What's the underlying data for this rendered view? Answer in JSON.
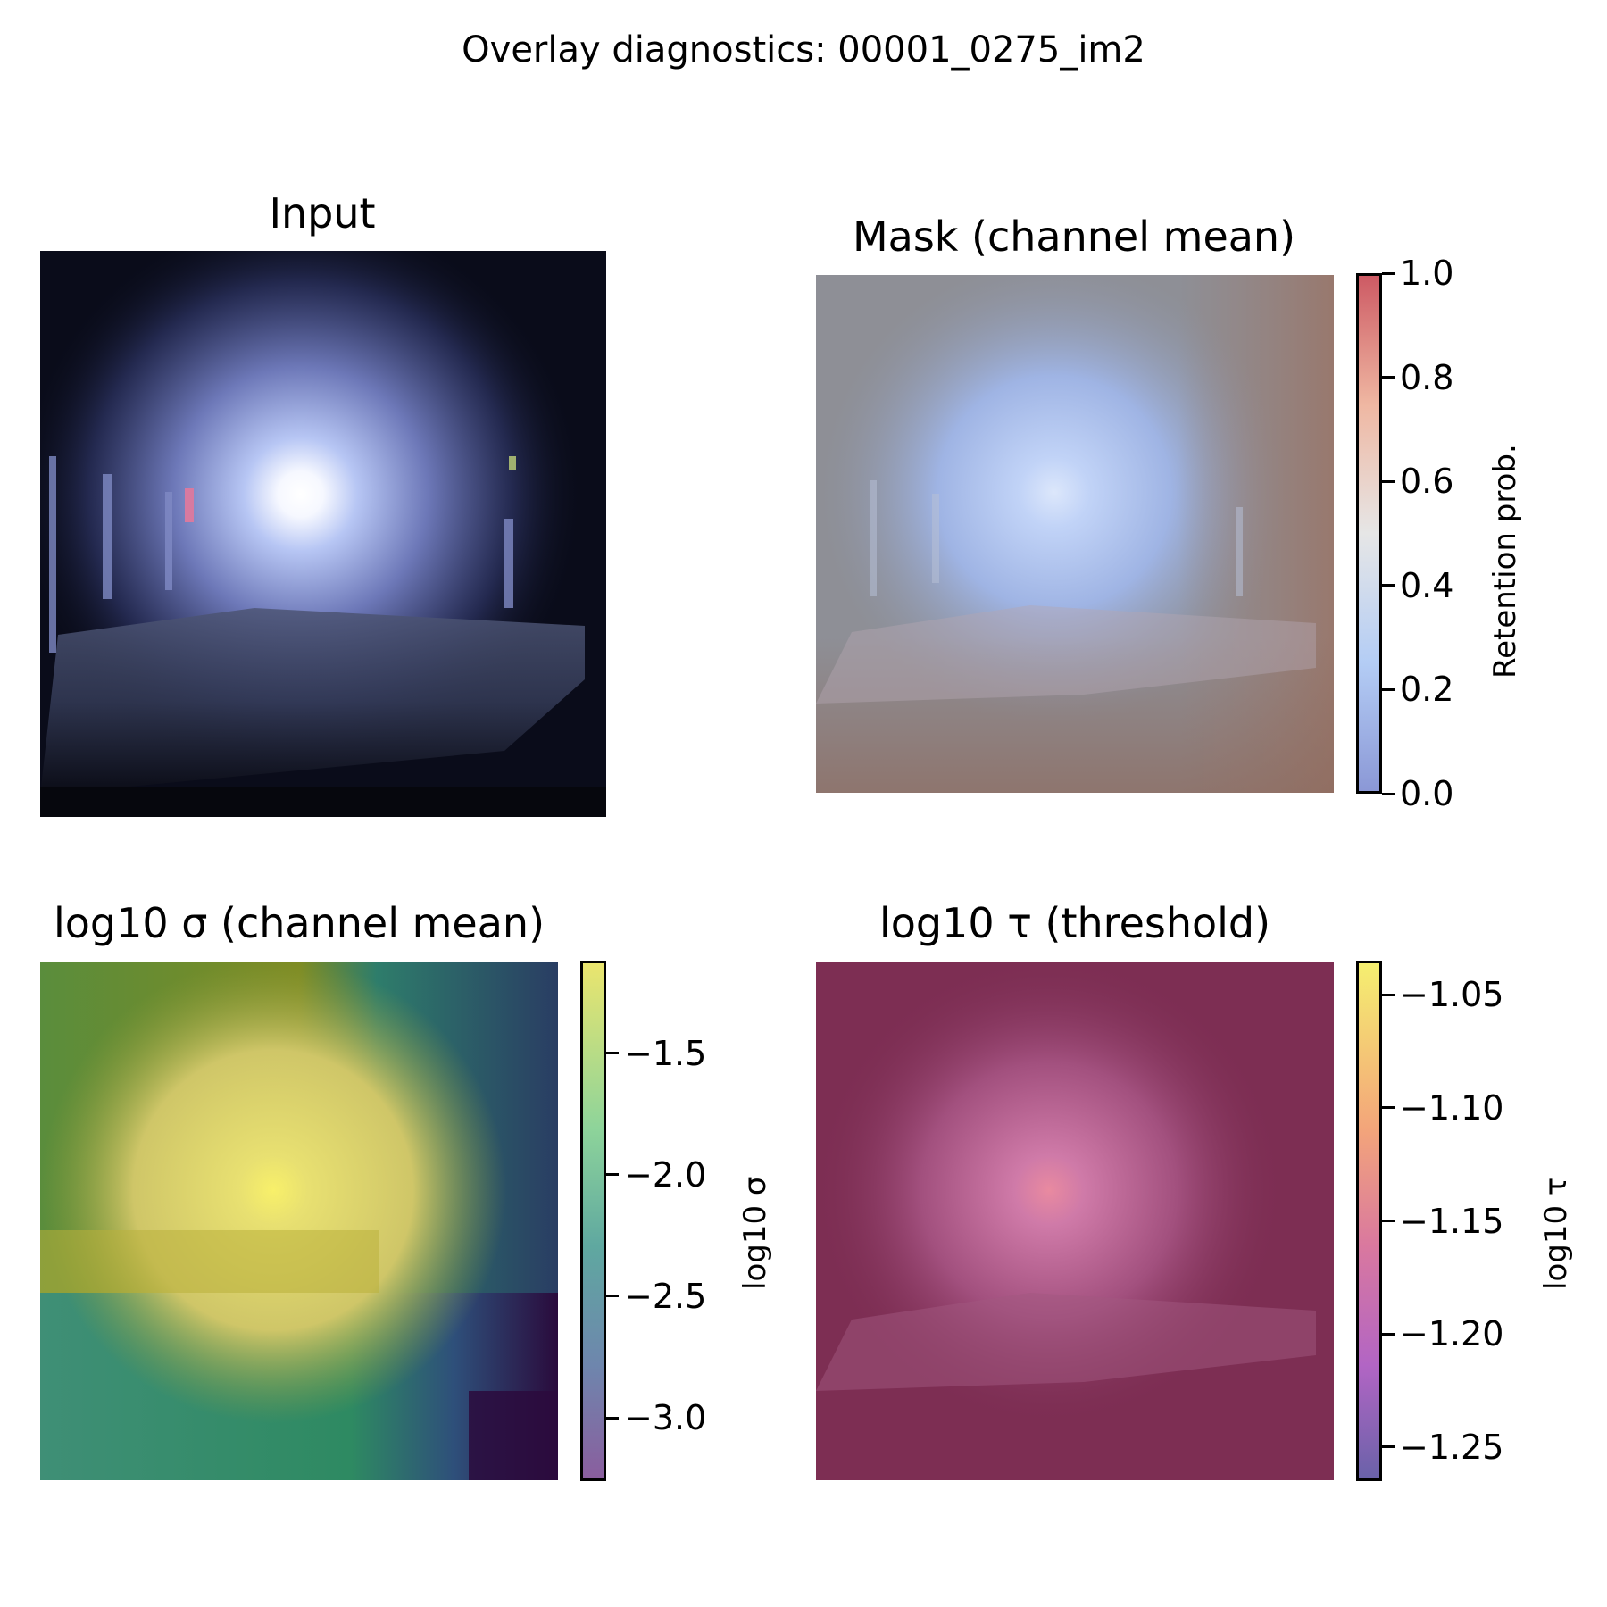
{
  "suptitle": "Overlay diagnostics: 00001_0275_im2",
  "chart_data": [
    {
      "type": "heatmap",
      "title": "Input",
      "colorbar": null,
      "content": "rgb image"
    },
    {
      "type": "heatmap",
      "title": "Mask (channel mean)",
      "colorbar": {
        "label": "Retention prob.",
        "range": [
          0.0,
          1.0
        ],
        "ticks": [
          0.0,
          0.2,
          0.4,
          0.6,
          0.8,
          1.0
        ],
        "tick_labels": [
          "0.0",
          "0.2",
          "0.4",
          "0.6",
          "0.8",
          "1.0"
        ],
        "colormap": "coolwarm",
        "colors": [
          "#3b4cc0",
          "#b4d0fb",
          "#dddddd",
          "#f3b396",
          "#b40426"
        ]
      }
    },
    {
      "type": "heatmap",
      "title": "log10 σ (channel mean)",
      "colorbar": {
        "label": "log10 σ",
        "range": [
          -3.26,
          -1.12
        ],
        "ticks": [
          -1.5,
          -2.0,
          -2.5,
          -3.0
        ],
        "tick_labels": [
          "−1.5",
          "−2.0",
          "−2.5",
          "−3.0"
        ],
        "colormap": "viridis",
        "colors": [
          "#440154",
          "#3b528b",
          "#21908d",
          "#5dc963",
          "#fde725"
        ]
      }
    },
    {
      "type": "heatmap",
      "title": "log10 τ (threshold)",
      "colorbar": {
        "label": "log10 τ",
        "range": [
          -1.265,
          -1.035
        ],
        "ticks": [
          -1.05,
          -1.1,
          -1.15,
          -1.2,
          -1.25
        ],
        "tick_labels": [
          "−1.05",
          "−1.10",
          "−1.15",
          "−1.20",
          "−1.25"
        ],
        "colormap": "plasma",
        "colors": [
          "#0d0887",
          "#7e03a8",
          "#cc4778",
          "#f89540",
          "#f0f921"
        ]
      }
    }
  ]
}
